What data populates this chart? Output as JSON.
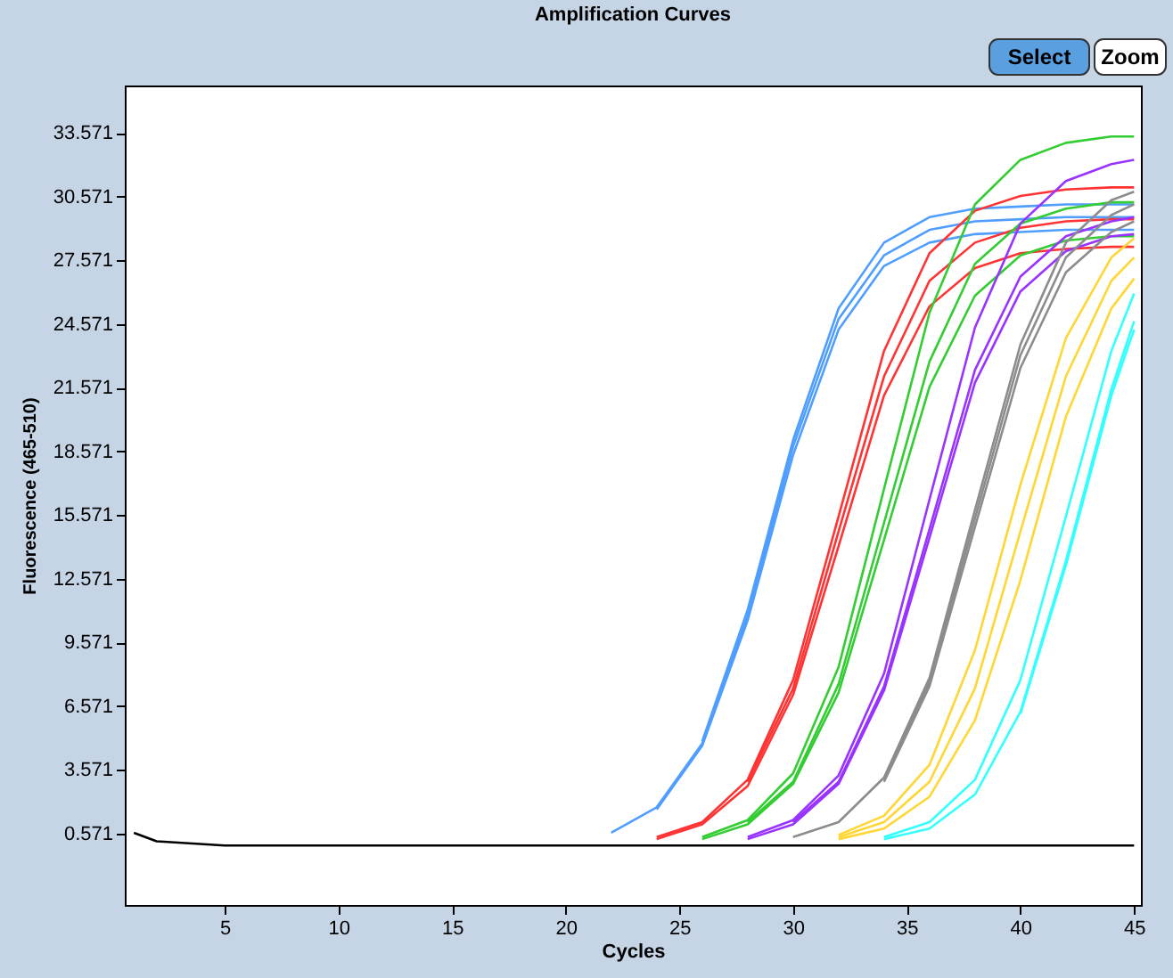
{
  "chart_data": {
    "type": "line",
    "title": "Amplification Curves",
    "xlabel": "Cycles",
    "ylabel": "Fluorescence (465-510)",
    "annotations": [
      "Select",
      "Zoom"
    ],
    "x": [
      1,
      2,
      5,
      10,
      15,
      20,
      22,
      24,
      26,
      28,
      30,
      32,
      34,
      36,
      38,
      40,
      42,
      44,
      45
    ],
    "xlim": [
      0.6,
      45.3
    ],
    "xticks": [
      5,
      10,
      15,
      20,
      25,
      30,
      35,
      40,
      45
    ],
    "ylim": [
      -2.8,
      35.8
    ],
    "yticks": [
      0.571,
      3.571,
      6.571,
      9.571,
      12.571,
      15.571,
      18.571,
      21.571,
      24.571,
      27.571,
      30.571,
      33.571
    ],
    "grid": false,
    "legend": false,
    "line_style": "solid",
    "marker": "none",
    "series": [
      {
        "color": "#4f9eff",
        "values": [
          null,
          null,
          null,
          null,
          null,
          null,
          0.6,
          1.8,
          4.8,
          10.8,
          18.8,
          24.8,
          27.8,
          29.0,
          29.4,
          29.5,
          29.6,
          29.6,
          29.6
        ]
      },
      {
        "color": "#4f9eff",
        "values": [
          null,
          null,
          null,
          null,
          null,
          null,
          null,
          null,
          4.9,
          11.1,
          19.1,
          25.3,
          28.4,
          29.6,
          30.0,
          30.1,
          30.2,
          30.2,
          30.2
        ]
      },
      {
        "color": "#4f9eff",
        "values": [
          null,
          null,
          null,
          null,
          null,
          null,
          null,
          1.7,
          4.7,
          10.6,
          18.4,
          24.3,
          27.3,
          28.4,
          28.8,
          28.9,
          29.0,
          29.0,
          29.0
        ]
      },
      {
        "color": "#ff3333",
        "values": [
          null,
          null,
          null,
          null,
          null,
          null,
          null,
          0.4,
          1.1,
          3.1,
          7.8,
          15.5,
          23.3,
          27.9,
          29.9,
          30.6,
          30.9,
          31.0,
          31.0
        ]
      },
      {
        "color": "#ff3333",
        "values": [
          null,
          null,
          null,
          null,
          null,
          null,
          null,
          null,
          null,
          3.0,
          7.4,
          14.8,
          22.1,
          26.6,
          28.4,
          29.1,
          29.4,
          29.5,
          29.5
        ]
      },
      {
        "color": "#ff3333",
        "values": [
          null,
          null,
          null,
          null,
          null,
          null,
          null,
          0.3,
          1.0,
          2.8,
          7.1,
          14.1,
          21.2,
          25.4,
          27.2,
          27.9,
          28.1,
          28.2,
          28.2
        ]
      },
      {
        "color": "#33cc33",
        "values": [
          null,
          null,
          null,
          null,
          null,
          null,
          null,
          null,
          0.4,
          1.2,
          3.4,
          8.4,
          16.8,
          25.1,
          30.2,
          32.3,
          33.1,
          33.4,
          33.4
        ]
      },
      {
        "color": "#33cc33",
        "values": [
          null,
          null,
          null,
          null,
          null,
          null,
          null,
          null,
          null,
          1.1,
          3.0,
          7.6,
          15.2,
          22.8,
          27.4,
          29.3,
          30.0,
          30.3,
          30.3
        ]
      },
      {
        "color": "#33cc33",
        "values": [
          null,
          null,
          null,
          null,
          null,
          null,
          null,
          null,
          0.3,
          1.0,
          2.9,
          7.2,
          14.4,
          21.6,
          25.9,
          27.8,
          28.5,
          28.7,
          28.7
        ]
      },
      {
        "color": "#9933ff",
        "values": [
          null,
          null,
          null,
          null,
          null,
          null,
          null,
          null,
          null,
          0.4,
          1.2,
          3.3,
          8.1,
          16.3,
          24.4,
          29.3,
          31.3,
          32.1,
          32.3
        ]
      },
      {
        "color": "#9933ff",
        "values": [
          null,
          null,
          null,
          null,
          null,
          null,
          null,
          null,
          null,
          null,
          1.1,
          3.0,
          7.5,
          14.9,
          22.4,
          26.8,
          28.7,
          29.4,
          29.6
        ]
      },
      {
        "color": "#9933ff",
        "values": [
          null,
          null,
          null,
          null,
          null,
          null,
          null,
          null,
          null,
          0.3,
          1.0,
          2.9,
          7.3,
          14.5,
          21.8,
          26.1,
          28.0,
          28.7,
          28.8
        ]
      },
      {
        "color": "#8c8c8c",
        "values": [
          null,
          null,
          null,
          null,
          null,
          null,
          null,
          null,
          null,
          null,
          0.4,
          1.1,
          3.2,
          7.9,
          15.8,
          23.6,
          28.4,
          30.4,
          30.8
        ]
      },
      {
        "color": "#8c8c8c",
        "values": [
          null,
          null,
          null,
          null,
          null,
          null,
          null,
          null,
          null,
          null,
          null,
          null,
          3.1,
          7.7,
          15.4,
          23.1,
          27.7,
          29.7,
          30.2
        ]
      },
      {
        "color": "#8c8c8c",
        "values": [
          null,
          null,
          null,
          null,
          null,
          null,
          null,
          null,
          null,
          null,
          null,
          null,
          3.0,
          7.5,
          15.0,
          22.5,
          27.0,
          28.9,
          29.4
        ]
      },
      {
        "color": "#ffd633",
        "values": [
          null,
          null,
          null,
          null,
          null,
          null,
          null,
          null,
          null,
          null,
          null,
          0.5,
          1.4,
          3.8,
          9.2,
          17.0,
          23.9,
          27.7,
          28.6
        ]
      },
      {
        "color": "#ffd633",
        "values": [
          null,
          null,
          null,
          null,
          null,
          null,
          null,
          null,
          null,
          null,
          null,
          0.4,
          1.1,
          3.0,
          7.4,
          14.8,
          22.1,
          26.6,
          27.7
        ]
      },
      {
        "color": "#ffd633",
        "values": [
          null,
          null,
          null,
          null,
          null,
          null,
          null,
          null,
          null,
          null,
          null,
          0.3,
          0.8,
          2.3,
          5.9,
          12.5,
          20.2,
          25.3,
          26.7
        ]
      },
      {
        "color": "#33ffff",
        "values": [
          null,
          null,
          null,
          null,
          null,
          null,
          null,
          null,
          null,
          null,
          null,
          null,
          0.4,
          1.1,
          3.1,
          7.8,
          15.5,
          23.3,
          26.0
        ]
      },
      {
        "color": "#33ffff",
        "values": [
          null,
          null,
          null,
          null,
          null,
          null,
          null,
          null,
          null,
          null,
          null,
          null,
          0.3,
          0.8,
          2.4,
          6.3,
          13.4,
          21.5,
          24.7
        ]
      },
      {
        "color": "#33ffff",
        "values": [
          null,
          null,
          null,
          null,
          null,
          null,
          null,
          null,
          null,
          null,
          null,
          null,
          null,
          null,
          null,
          6.2,
          13.2,
          21.2,
          24.3
        ]
      },
      {
        "color": "#000000",
        "values": [
          0.6,
          0.2,
          0,
          0,
          0,
          0,
          0,
          0,
          0,
          0,
          0,
          0,
          0,
          0,
          0,
          0,
          0,
          0,
          0
        ]
      }
    ]
  }
}
